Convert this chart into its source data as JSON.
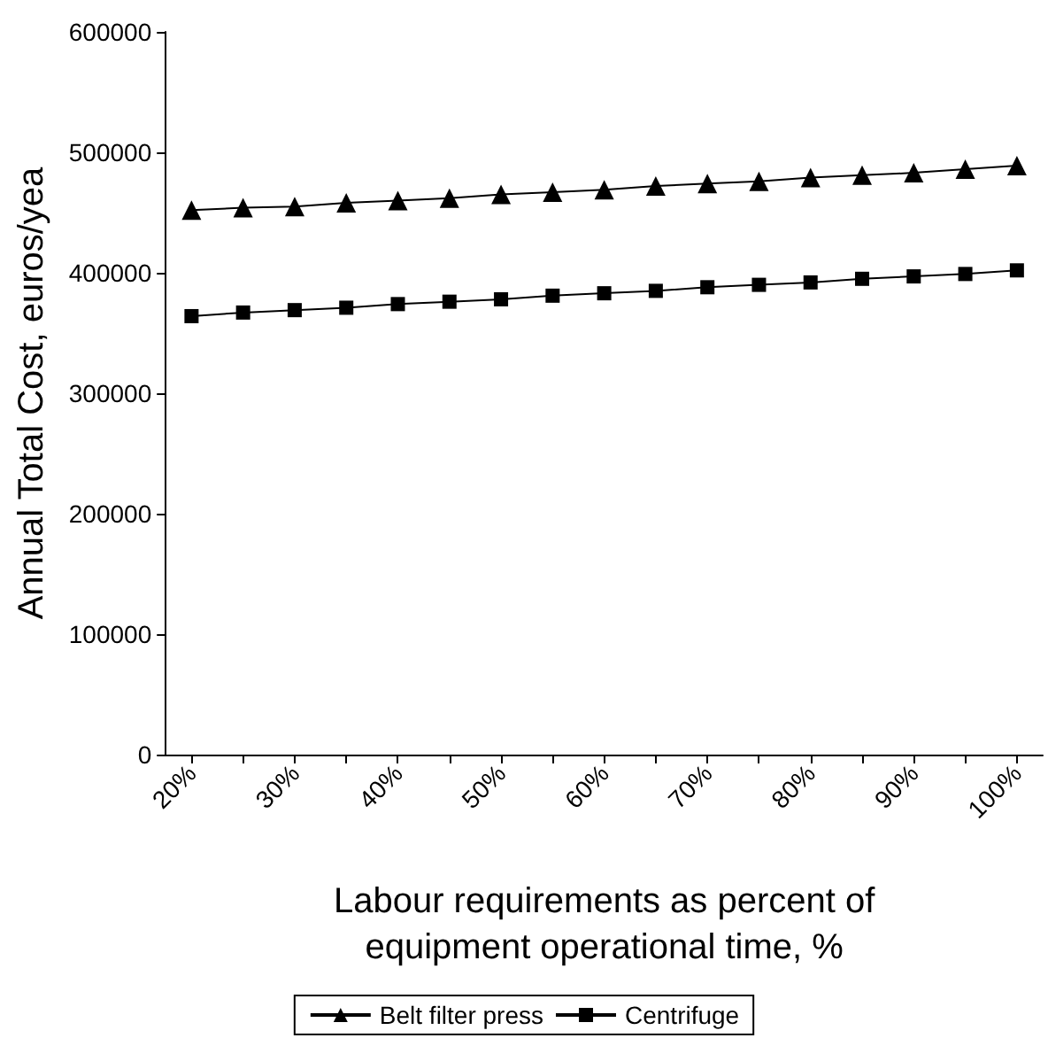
{
  "chart_data": {
    "type": "line",
    "xlabel": "Labour requirements as percent of\nequipment operational time, %",
    "ylabel": "Annual Total Cost, euros/yea",
    "categories": [
      "20%",
      null,
      "30%",
      null,
      "40%",
      null,
      "50%",
      null,
      "60%",
      null,
      "70%",
      null,
      "80%",
      null,
      "90%",
      null,
      "100%"
    ],
    "series": [
      {
        "name": "Belt filter press",
        "color": "#000000",
        "marker": "triangle",
        "values": [
          452000,
          454000,
          455000,
          458000,
          460000,
          462000,
          465000,
          467000,
          469000,
          472000,
          474000,
          476000,
          479000,
          481000,
          483000,
          486000,
          489000
        ]
      },
      {
        "name": "Centrifuge",
        "color": "#000000",
        "marker": "square",
        "values": [
          364000,
          367000,
          369000,
          371000,
          374000,
          376000,
          378000,
          381000,
          383000,
          385000,
          388000,
          390000,
          392000,
          395000,
          397000,
          399000,
          402000
        ]
      }
    ],
    "ylim": [
      0,
      600000
    ],
    "yticks": [
      0,
      100000,
      200000,
      300000,
      400000,
      500000,
      600000
    ],
    "grid": false,
    "legend": "bottom",
    "line_style": "solid"
  }
}
